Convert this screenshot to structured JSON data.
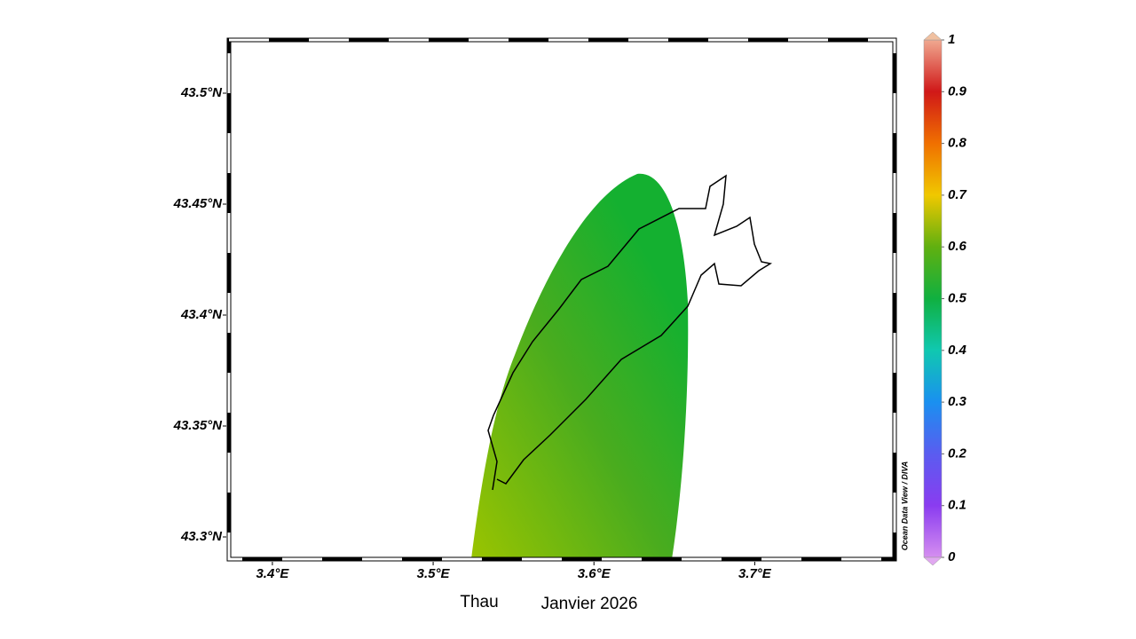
{
  "map": {
    "xlim": [
      3.373,
      3.787
    ],
    "ylim": [
      43.29,
      43.524
    ],
    "xticks": [
      {
        "value": 3.4,
        "label": "3.4°E"
      },
      {
        "value": 3.5,
        "label": "3.5°E"
      },
      {
        "value": 3.6,
        "label": "3.6°E"
      },
      {
        "value": 3.7,
        "label": "3.7°E"
      }
    ],
    "yticks": [
      {
        "value": 43.3,
        "label": "43.3°N"
      },
      {
        "value": 43.35,
        "label": "43.35°N"
      },
      {
        "value": 43.4,
        "label": "43.4°N"
      },
      {
        "value": 43.45,
        "label": "43.45°N"
      },
      {
        "value": 43.5,
        "label": "43.5°N"
      }
    ],
    "colorbar": {
      "lim": [
        0,
        1
      ],
      "ticks": [
        0,
        0.1,
        0.2,
        0.3,
        0.4,
        0.5,
        0.6,
        0.7,
        0.8,
        0.9,
        1
      ]
    },
    "watermark": "Ocean Data View / DIVA"
  },
  "caption": {
    "site": "Thau",
    "date": "Janvier 2026"
  }
}
